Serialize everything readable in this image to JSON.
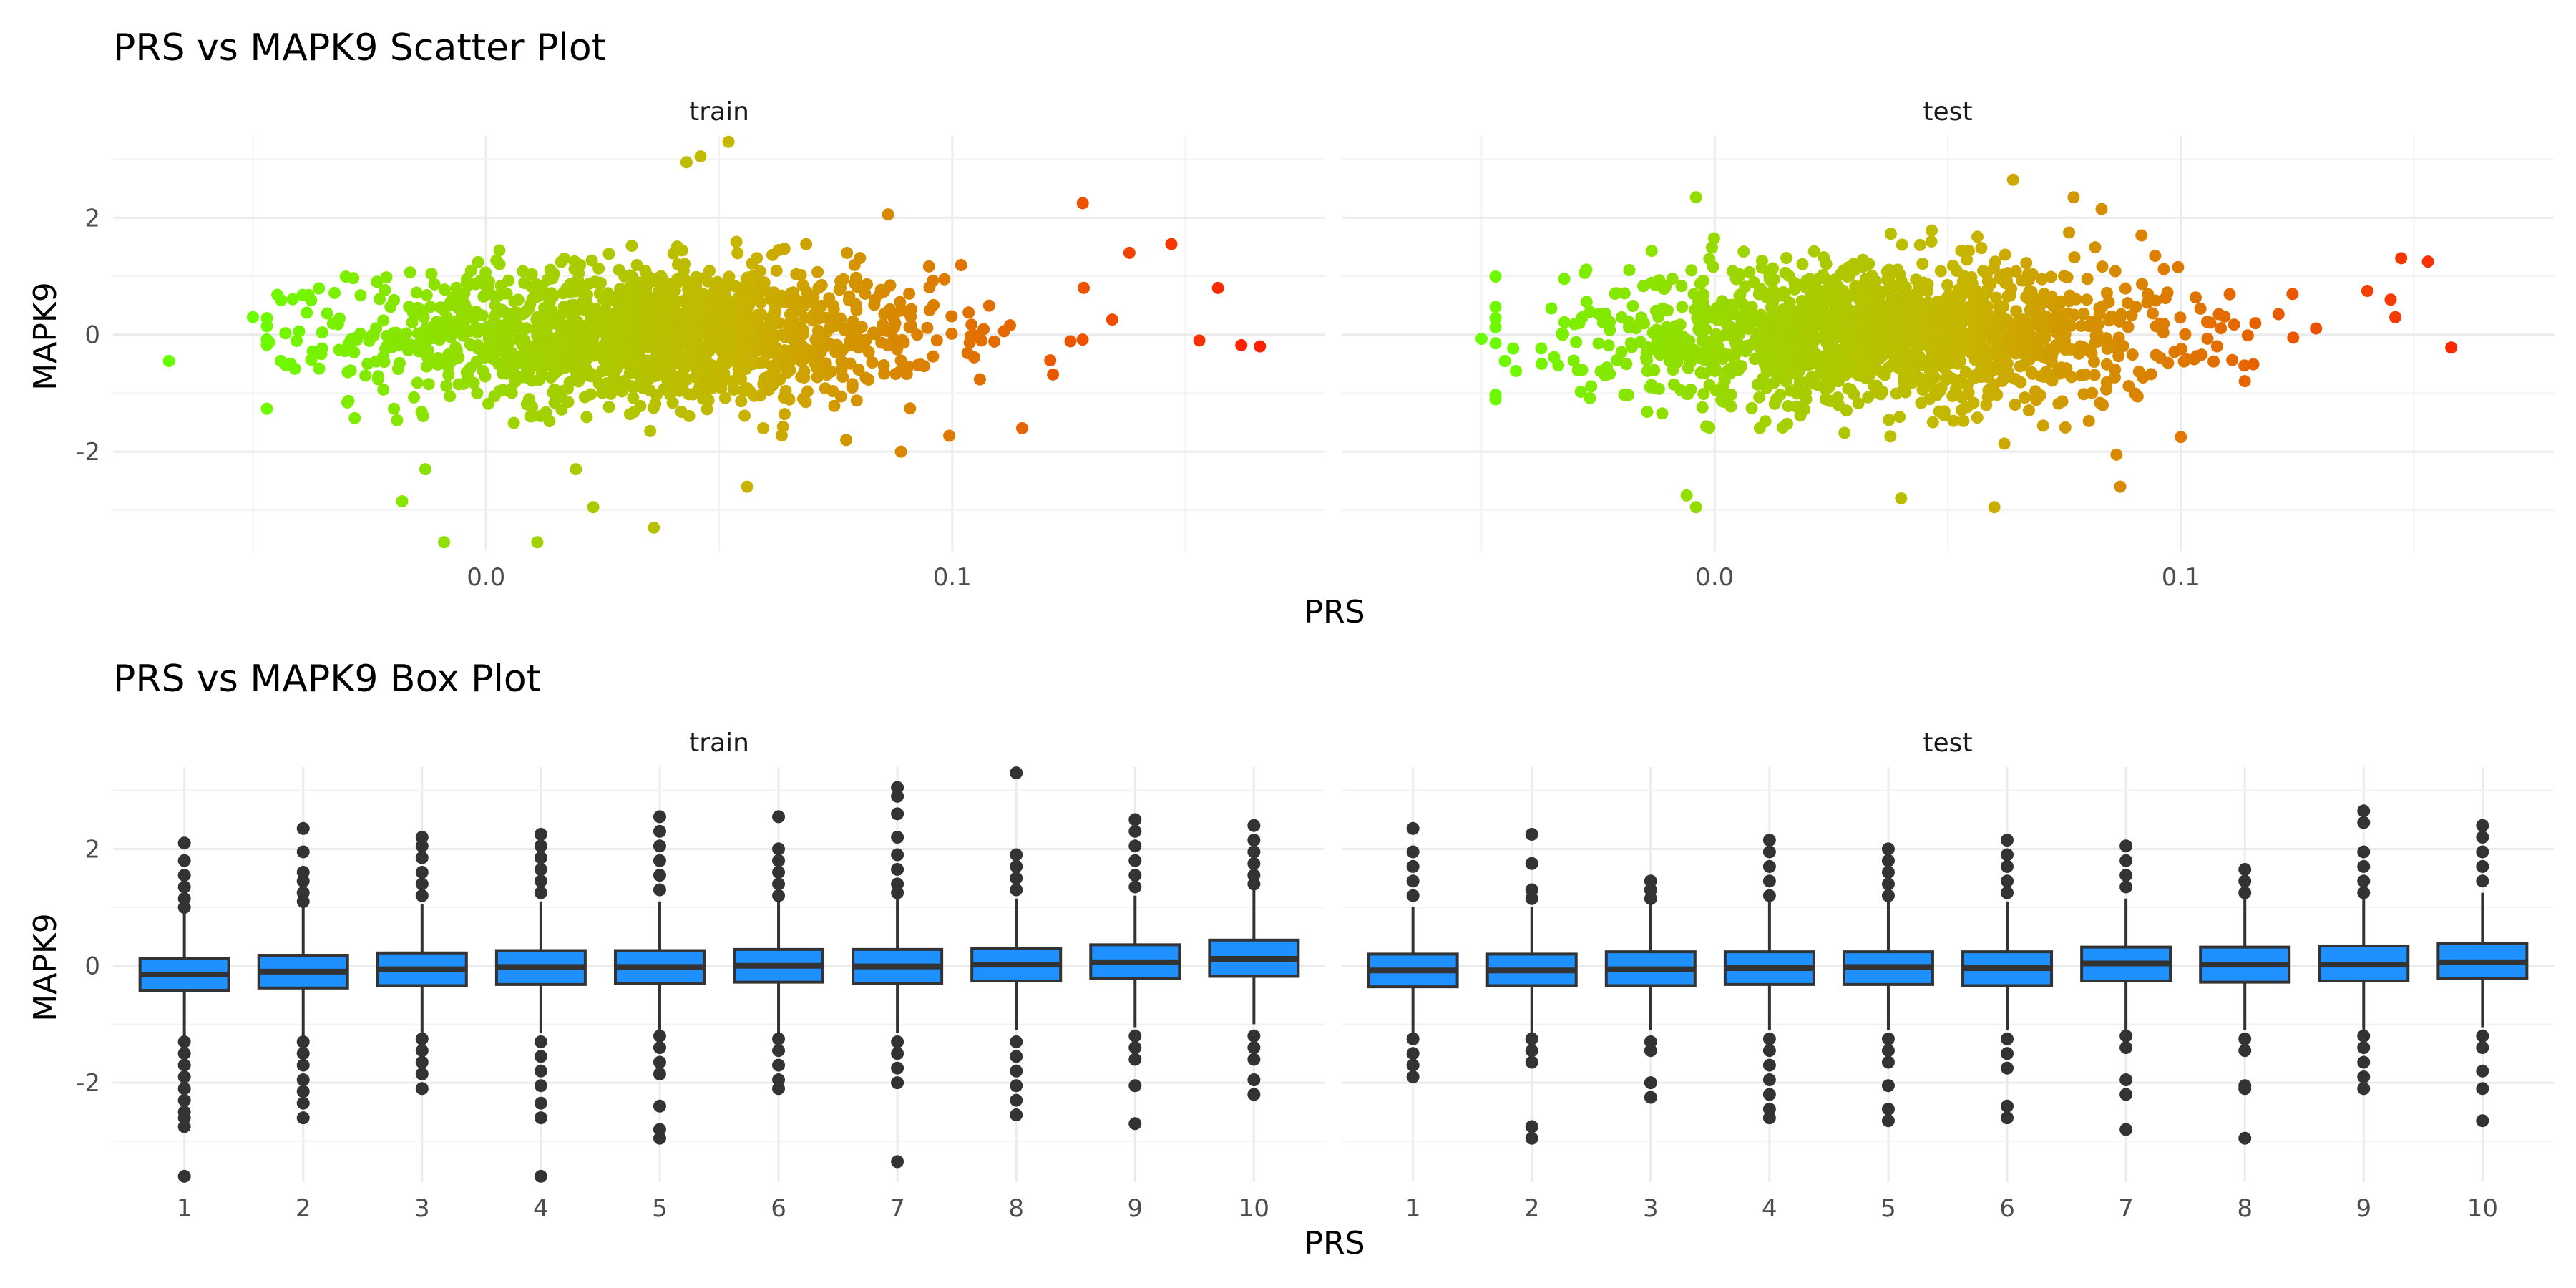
{
  "colors": {
    "low": "#66ff00",
    "mid": "#c8b400",
    "high": "#ff2000",
    "box_fill": "#1e90ff",
    "box_line": "#333333",
    "point": "#333333"
  },
  "chart_data": [
    {
      "type": "scatter",
      "title": "PRS vs MAPK9 Scatter Plot",
      "xlabel": "PRS",
      "ylabel": "MAPK9",
      "xlim": [
        -0.08,
        0.18
      ],
      "ylim": [
        -3.7,
        3.4
      ],
      "xticks": [
        0.0,
        0.1
      ],
      "xtick_labels": [
        "0.0",
        "0.1"
      ],
      "yticks": [
        -2,
        0,
        2
      ],
      "ytick_labels": [
        "-2",
        "0",
        "2"
      ],
      "color_by": "PRS",
      "facets": [
        {
          "name": "train",
          "x_mean": 0.035,
          "x_sd": 0.031,
          "y_sd": 0.6,
          "outliers": [
            {
              "x": -0.068,
              "y": -0.45
            },
            {
              "x": 0.162,
              "y": -0.18
            },
            {
              "x": 0.166,
              "y": -0.2
            },
            {
              "x": 0.052,
              "y": 3.3
            },
            {
              "x": 0.046,
              "y": 3.05
            },
            {
              "x": 0.043,
              "y": 2.95
            },
            {
              "x": -0.009,
              "y": -3.55
            },
            {
              "x": 0.011,
              "y": -3.55
            },
            {
              "x": 0.036,
              "y": -3.3
            },
            {
              "x": 0.023,
              "y": -2.95
            },
            {
              "x": -0.018,
              "y": -2.85
            },
            {
              "x": 0.147,
              "y": 1.55
            },
            {
              "x": 0.138,
              "y": 1.4
            },
            {
              "x": 0.128,
              "y": 2.25
            },
            {
              "x": 0.157,
              "y": 0.8
            },
            {
              "x": 0.153,
              "y": -0.1
            },
            {
              "x": -0.05,
              "y": 0.3
            },
            {
              "x": -0.044,
              "y": -0.45
            },
            {
              "x": 0.056,
              "y": -2.6
            },
            {
              "x": 0.089,
              "y": -2.0
            },
            {
              "x": 0.115,
              "y": -1.6
            }
          ]
        },
        {
          "name": "test",
          "x_mean": 0.035,
          "x_sd": 0.031,
          "y_sd": 0.6,
          "outliers": [
            {
              "x": -0.05,
              "y": -0.07
            },
            {
              "x": 0.158,
              "y": -0.22
            },
            {
              "x": 0.153,
              "y": 1.25
            },
            {
              "x": 0.064,
              "y": 2.65
            },
            {
              "x": -0.004,
              "y": 2.35
            },
            {
              "x": -0.004,
              "y": -2.95
            },
            {
              "x": -0.006,
              "y": -2.75
            },
            {
              "x": 0.06,
              "y": -2.95
            },
            {
              "x": 0.04,
              "y": -2.8
            },
            {
              "x": 0.087,
              "y": -2.6
            },
            {
              "x": 0.145,
              "y": 0.6
            },
            {
              "x": 0.14,
              "y": 0.75
            },
            {
              "x": 0.146,
              "y": 0.3
            },
            {
              "x": -0.045,
              "y": -0.45
            },
            {
              "x": 0.077,
              "y": 2.35
            },
            {
              "x": 0.083,
              "y": 2.15
            },
            {
              "x": 0.1,
              "y": -1.75
            }
          ]
        }
      ]
    },
    {
      "type": "box",
      "title": "PRS vs MAPK9 Box Plot",
      "xlabel": "PRS",
      "ylabel": "MAPK9",
      "ylim": [
        -3.7,
        3.4
      ],
      "yticks": [
        -2,
        0,
        2
      ],
      "ytick_labels": [
        "-2",
        "0",
        "2"
      ],
      "categories": [
        "1",
        "2",
        "3",
        "4",
        "5",
        "6",
        "7",
        "8",
        "9",
        "10"
      ],
      "facets": [
        {
          "name": "train",
          "boxes": [
            {
              "q1": -0.42,
              "median": -0.15,
              "q3": 0.12,
              "whisker_low": -1.25,
              "whisker_high": 0.95,
              "outliers": [
                2.1,
                1.8,
                1.55,
                1.35,
                1.15,
                1.0,
                -1.3,
                -1.5,
                -1.7,
                -1.9,
                -2.1,
                -2.3,
                -2.5,
                -2.6,
                -2.75,
                -3.6
              ]
            },
            {
              "q1": -0.38,
              "median": -0.1,
              "q3": 0.18,
              "whisker_low": -1.2,
              "whisker_high": 1.0,
              "outliers": [
                2.35,
                1.95,
                1.6,
                1.45,
                1.25,
                1.1,
                -1.3,
                -1.5,
                -1.7,
                -1.95,
                -2.15,
                -2.35,
                -2.6
              ]
            },
            {
              "q1": -0.34,
              "median": -0.06,
              "q3": 0.22,
              "whisker_low": -1.15,
              "whisker_high": 1.05,
              "outliers": [
                2.2,
                2.05,
                1.85,
                1.6,
                1.4,
                1.2,
                -1.25,
                -1.45,
                -1.65,
                -1.85,
                -2.1
              ]
            },
            {
              "q1": -0.32,
              "median": -0.02,
              "q3": 0.26,
              "whisker_low": -1.15,
              "whisker_high": 1.1,
              "outliers": [
                2.25,
                2.05,
                1.85,
                1.65,
                1.45,
                1.25,
                -1.3,
                -1.55,
                -1.8,
                -2.05,
                -2.35,
                -2.6,
                -3.6
              ]
            },
            {
              "q1": -0.3,
              "median": -0.02,
              "q3": 0.26,
              "whisker_low": -1.15,
              "whisker_high": 1.1,
              "outliers": [
                2.55,
                2.3,
                2.05,
                1.8,
                1.55,
                1.3,
                -1.2,
                -1.4,
                -1.65,
                -1.85,
                -2.4,
                -2.8,
                -2.95
              ]
            },
            {
              "q1": -0.28,
              "median": 0.0,
              "q3": 0.28,
              "whisker_low": -1.15,
              "whisker_high": 1.15,
              "outliers": [
                2.55,
                2.0,
                1.8,
                1.6,
                1.4,
                1.2,
                -1.25,
                -1.45,
                -1.7,
                -1.95,
                -2.1
              ]
            },
            {
              "q1": -0.3,
              "median": -0.01,
              "q3": 0.28,
              "whisker_low": -1.15,
              "whisker_high": 1.15,
              "outliers": [
                3.05,
                2.9,
                2.6,
                2.2,
                1.9,
                1.65,
                1.4,
                1.25,
                -1.3,
                -1.5,
                -1.75,
                -2.0,
                -3.35
              ]
            },
            {
              "q1": -0.26,
              "median": 0.02,
              "q3": 0.3,
              "whisker_low": -1.1,
              "whisker_high": 1.15,
              "outliers": [
                3.3,
                1.9,
                1.7,
                1.5,
                1.3,
                -1.3,
                -1.55,
                -1.8,
                -2.05,
                -2.3,
                -2.55
              ]
            },
            {
              "q1": -0.22,
              "median": 0.06,
              "q3": 0.36,
              "whisker_low": -1.05,
              "whisker_high": 1.2,
              "outliers": [
                2.5,
                2.3,
                2.05,
                1.8,
                1.55,
                1.35,
                -1.2,
                -1.4,
                -1.6,
                -2.05,
                -2.7
              ]
            },
            {
              "q1": -0.18,
              "median": 0.12,
              "q3": 0.44,
              "whisker_low": -1.0,
              "whisker_high": 1.3,
              "outliers": [
                2.4,
                2.15,
                1.95,
                1.75,
                1.55,
                1.4,
                -1.2,
                -1.4,
                -1.6,
                -1.95,
                -2.2
              ]
            }
          ]
        },
        {
          "name": "test",
          "boxes": [
            {
              "q1": -0.36,
              "median": -0.08,
              "q3": 0.2,
              "whisker_low": -1.15,
              "whisker_high": 1.0,
              "outliers": [
                2.35,
                1.95,
                1.7,
                1.45,
                1.2,
                -1.25,
                -1.5,
                -1.7,
                -1.9
              ]
            },
            {
              "q1": -0.34,
              "median": -0.08,
              "q3": 0.2,
              "whisker_low": -1.15,
              "whisker_high": 1.0,
              "outliers": [
                2.25,
                1.75,
                1.3,
                1.15,
                -1.25,
                -1.45,
                -1.65,
                -2.75,
                -2.95
              ]
            },
            {
              "q1": -0.34,
              "median": -0.06,
              "q3": 0.24,
              "whisker_low": -1.1,
              "whisker_high": 1.05,
              "outliers": [
                1.45,
                1.3,
                1.15,
                -1.3,
                -1.45,
                -2.0,
                -2.25
              ]
            },
            {
              "q1": -0.32,
              "median": -0.04,
              "q3": 0.24,
              "whisker_low": -1.1,
              "whisker_high": 1.1,
              "outliers": [
                2.15,
                1.95,
                1.7,
                1.45,
                1.2,
                -1.25,
                -1.45,
                -1.7,
                -1.95,
                -2.2,
                -2.45,
                -2.6
              ]
            },
            {
              "q1": -0.32,
              "median": -0.02,
              "q3": 0.24,
              "whisker_low": -1.1,
              "whisker_high": 1.1,
              "outliers": [
                2.0,
                1.8,
                1.6,
                1.4,
                1.2,
                -1.25,
                -1.45,
                -1.65,
                -2.05,
                -2.45,
                -2.65
              ]
            },
            {
              "q1": -0.34,
              "median": -0.04,
              "q3": 0.24,
              "whisker_low": -1.1,
              "whisker_high": 1.1,
              "outliers": [
                2.15,
                1.9,
                1.7,
                1.45,
                1.25,
                -1.25,
                -1.5,
                -1.75,
                -2.4,
                -2.6
              ]
            },
            {
              "q1": -0.26,
              "median": 0.04,
              "q3": 0.32,
              "whisker_low": -1.1,
              "whisker_high": 1.15,
              "outliers": [
                2.05,
                1.8,
                1.55,
                1.35,
                -1.2,
                -1.4,
                -1.95,
                -2.2,
                -2.8
              ]
            },
            {
              "q1": -0.28,
              "median": 0.02,
              "q3": 0.32,
              "whisker_low": -1.1,
              "whisker_high": 1.15,
              "outliers": [
                1.65,
                1.45,
                1.25,
                -1.25,
                -1.45,
                -2.05,
                -2.1,
                -2.95
              ]
            },
            {
              "q1": -0.26,
              "median": 0.02,
              "q3": 0.34,
              "whisker_low": -1.1,
              "whisker_high": 1.2,
              "outliers": [
                2.65,
                2.45,
                1.95,
                1.7,
                1.45,
                1.25,
                -1.2,
                -1.4,
                -1.65,
                -1.9,
                -2.1
              ]
            },
            {
              "q1": -0.22,
              "median": 0.06,
              "q3": 0.38,
              "whisker_low": -1.05,
              "whisker_high": 1.25,
              "outliers": [
                2.4,
                2.2,
                1.95,
                1.7,
                1.45,
                -1.2,
                -1.4,
                -1.8,
                -2.1,
                -2.65
              ]
            }
          ]
        }
      ]
    }
  ]
}
